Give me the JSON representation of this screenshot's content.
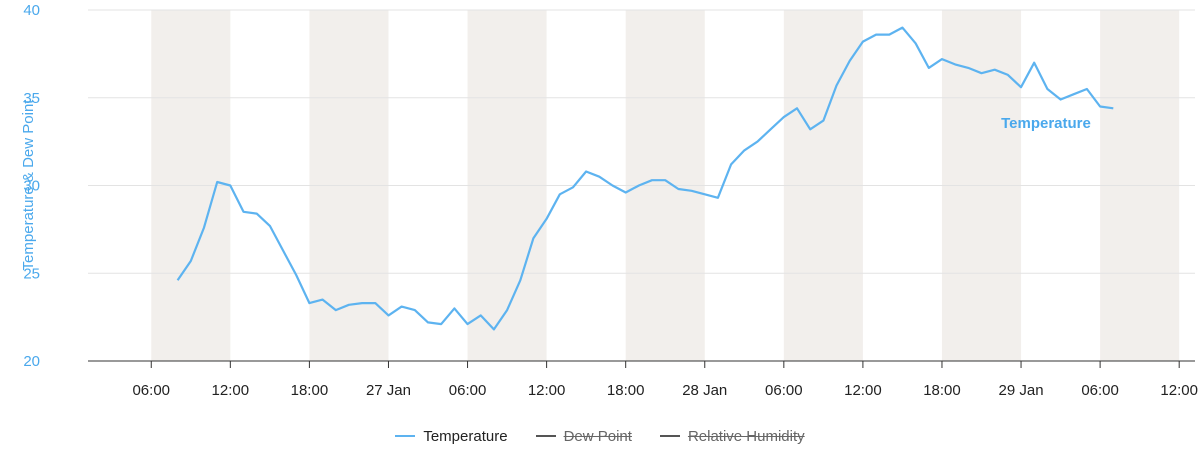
{
  "chart_data": {
    "type": "line",
    "ylabel": "Temperature & Dew Point",
    "ylim": [
      20,
      40
    ],
    "y_ticks": [
      "20",
      "25",
      "30",
      "35",
      "40"
    ],
    "x_ticks": [
      "06:00",
      "12:00",
      "18:00",
      "27 Jan",
      "06:00",
      "12:00",
      "18:00",
      "28 Jan",
      "06:00",
      "12:00",
      "18:00",
      "29 Jan",
      "06:00",
      "12:00"
    ],
    "x_tick_hours": [
      6,
      12,
      18,
      24,
      30,
      36,
      42,
      48,
      54,
      60,
      66,
      72,
      78,
      84
    ],
    "x_range_hours": [
      1.2,
      85.2
    ],
    "x_note": "hours since 26 Jan 00:00",
    "night_bands_hours": [
      [
        6,
        12
      ],
      [
        18,
        24
      ],
      [
        30,
        36
      ],
      [
        42,
        48
      ],
      [
        54,
        60
      ],
      [
        66,
        72
      ],
      [
        78,
        84
      ]
    ],
    "grid": true,
    "legend_position": "bottom-center",
    "series_label": "Temperature",
    "series": [
      {
        "name": "Temperature",
        "color": "#5db3f0",
        "visible": true,
        "x": [
          8,
          9,
          10,
          11,
          12,
          13,
          14,
          15,
          16,
          17,
          18,
          19,
          20,
          21,
          22,
          23,
          24,
          25,
          26,
          27,
          28,
          29,
          30,
          31,
          32,
          33,
          34,
          35,
          36,
          37,
          38,
          39,
          40,
          41,
          42,
          43,
          44,
          45,
          46,
          47,
          48,
          49,
          50,
          51,
          52,
          53,
          54,
          55,
          56,
          57,
          58,
          59,
          60,
          61,
          62,
          63,
          64,
          65,
          66,
          67,
          68,
          69,
          70,
          71,
          72,
          73,
          74,
          75,
          76,
          77,
          78,
          79
        ],
        "values": [
          24.6,
          25.7,
          27.6,
          30.2,
          30.0,
          28.5,
          28.4,
          27.7,
          26.3,
          24.9,
          23.3,
          23.5,
          22.9,
          23.2,
          23.3,
          23.3,
          22.6,
          23.1,
          22.9,
          22.2,
          22.1,
          23.0,
          22.1,
          22.6,
          21.8,
          22.9,
          24.6,
          27.0,
          28.1,
          29.5,
          29.9,
          30.8,
          30.5,
          30.0,
          29.6,
          30.0,
          30.3,
          30.3,
          29.8,
          29.7,
          29.5,
          29.3,
          31.2,
          32.0,
          32.5,
          33.2,
          33.9,
          34.4,
          33.2,
          33.7,
          35.7,
          37.1,
          38.2,
          38.6,
          38.6,
          39.0,
          38.1,
          36.7,
          37.2,
          36.9,
          36.7,
          36.4,
          36.6,
          36.3,
          35.6,
          37.0,
          35.5,
          34.9,
          35.2,
          35.5,
          34.5,
          34.4
        ]
      },
      {
        "name": "Dew Point",
        "color": "#555555",
        "visible": false
      },
      {
        "name": "Relative Humidity",
        "color": "#555555",
        "visible": false
      }
    ]
  }
}
